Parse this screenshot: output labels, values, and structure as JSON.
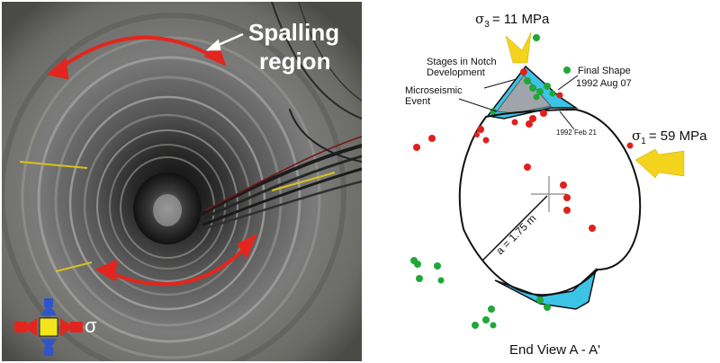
{
  "photo": {
    "label_line1": "Spalling",
    "label_line2": "region",
    "sigma_symbol": "σ",
    "colors": {
      "arrow": "#e3261d",
      "label": "#ffffff",
      "icon_red": "#e3261d",
      "icon_blue": "#2f55c7",
      "icon_yellow": "#f3e51b"
    }
  },
  "diagram": {
    "sigma3_symbol": "σ",
    "sigma3_subscript": "3",
    "sigma3_value": "= 11 MPa",
    "sigma1_symbol": "σ",
    "sigma1_subscript": "1",
    "sigma1_value": "= 59 MPa",
    "stages_line1": "Stages in Notch",
    "stages_line2": "Development",
    "final_line1": "Final Shape",
    "final_line2": "1992  Aug 07",
    "micro_line1": "Microseismic",
    "micro_line2": "Event",
    "feb_label": "1992   Feb 21",
    "radius_label": "a = 1.75 m",
    "caption": "End View A - A'",
    "colors": {
      "notch": "#3cc3e6",
      "notch_inner": "#9fa5aa",
      "red_event": "#e0201c",
      "green_event": "#1fa838",
      "stress_arrow": "#f3d31b",
      "outline": "#111111"
    }
  }
}
